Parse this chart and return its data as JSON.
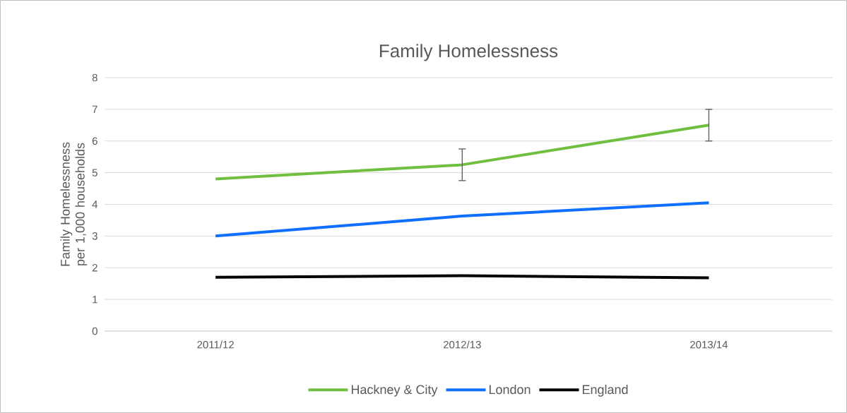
{
  "chart_data": {
    "type": "line",
    "title": "Family Homelessness",
    "ylabel": "Family Homelessness per 1,000 households",
    "categories": [
      "2011/12",
      "2012/13",
      "2013/14"
    ],
    "series": [
      {
        "name": "Hackney & City",
        "color": "#70bf41",
        "values": [
          4.8,
          5.25,
          6.5
        ],
        "errors": [
          null,
          [
            4.75,
            5.75
          ],
          [
            6,
            7
          ]
        ]
      },
      {
        "name": "London",
        "color": "#0f6fff",
        "values": [
          3.0,
          3.63,
          4.05
        ]
      },
      {
        "name": "England",
        "color": "#000000",
        "values": [
          1.7,
          1.75,
          1.68
        ]
      }
    ],
    "ylim": [
      0,
      8
    ],
    "yticks": [
      0,
      1,
      2,
      3,
      4,
      5,
      6,
      7,
      8
    ],
    "grid": "y",
    "legend": "bottom",
    "marker": "none",
    "line_style": "solid"
  }
}
